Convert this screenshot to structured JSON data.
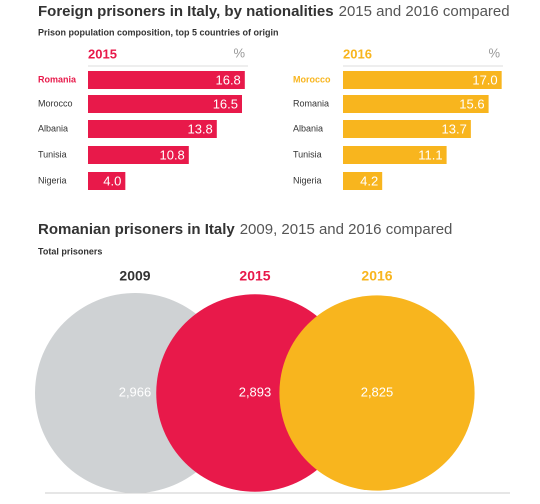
{
  "sections": [
    {
      "title": "Foreign prisoners in Italy, by nationalities",
      "title_note": "2015 and 2016 compared",
      "subtitle": "Prison population composition, top 5 countries of origin"
    },
    {
      "title": "Romanian prisoners in Italy",
      "title_note": "2009, 2015 and 2016 compared",
      "subtitle": "Total prisoners"
    }
  ],
  "chart_data": [
    {
      "type": "bar",
      "title": "2015",
      "unit_label": "%",
      "categories": [
        "Romania",
        "Morocco",
        "Albania",
        "Tunisia",
        "Nigeria"
      ],
      "values": [
        16.8,
        16.5,
        13.8,
        10.8,
        4.0
      ],
      "value_labels": [
        "16.8",
        "16.5",
        "13.8",
        "10.8",
        "4.0"
      ],
      "color": "#e8194a",
      "highlight": 0,
      "xlim": [
        0,
        18
      ]
    },
    {
      "type": "bar",
      "title": "2016",
      "unit_label": "%",
      "categories": [
        "Morocco",
        "Romania",
        "Albania",
        "Tunisia",
        "Nigeria"
      ],
      "values": [
        17.0,
        15.6,
        13.7,
        11.1,
        4.2
      ],
      "value_labels": [
        "17.0",
        "15.6",
        "13.7",
        "11.1",
        "4.2"
      ],
      "color": "#f8b51e",
      "highlight": 0,
      "xlim": [
        0,
        18
      ]
    },
    {
      "type": "circles",
      "categories": [
        "2009",
        "2015",
        "2016"
      ],
      "values": [
        2966,
        2893,
        2825
      ],
      "value_labels": [
        "2,966",
        "2,893",
        "2,825"
      ],
      "colors": [
        "#cfd2d4",
        "#e8194a",
        "#f8b51e"
      ],
      "label_colors": [
        "#333333",
        "#e8194a",
        "#f8b51e"
      ]
    }
  ]
}
